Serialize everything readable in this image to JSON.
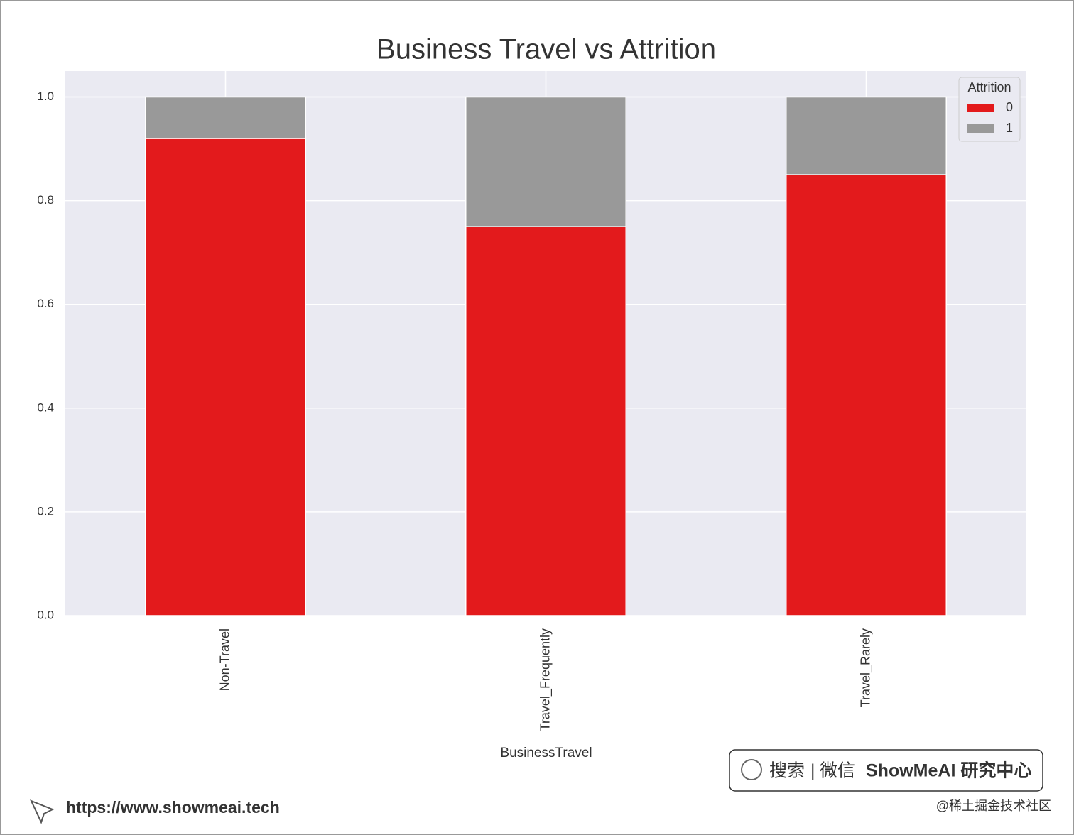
{
  "chart_data": {
    "type": "stacked_bar",
    "title": "Business Travel vs Attrition",
    "x_label": "BusinessTravel",
    "categories": [
      "Non-Travel",
      "Travel_Frequently",
      "Travel_Rarely"
    ],
    "series": [
      {
        "name": "0",
        "color": "#e31a1c",
        "values": [
          0.92,
          0.75,
          0.85
        ]
      },
      {
        "name": "1",
        "color": "#999999",
        "values": [
          0.08,
          0.25,
          0.15
        ]
      }
    ],
    "ylim": [
      0,
      1.05
    ],
    "yticks": [
      {
        "value": 0,
        "label": "0.0"
      },
      0.2,
      0.4,
      0.6,
      0.8,
      {
        "value": 1,
        "label": "1.0"
      }
    ],
    "grid": true,
    "legend_title": "Attrition",
    "legend_position": "upper right"
  },
  "footer": {
    "search": "搜索",
    "wechat": "微信",
    "brand": "ShowMeAI 研究中心",
    "url": "https://www.showmeai.tech",
    "credit": "@稀土掘金技术社区"
  }
}
